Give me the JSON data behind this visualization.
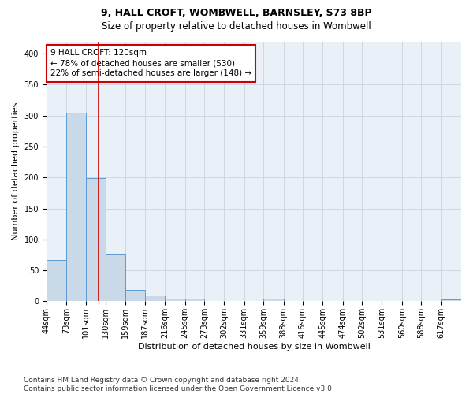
{
  "title1": "9, HALL CROFT, WOMBWELL, BARNSLEY, S73 8BP",
  "title2": "Size of property relative to detached houses in Wombwell",
  "xlabel": "Distribution of detached houses by size in Wombwell",
  "ylabel": "Number of detached properties",
  "bin_labels": [
    "44sqm",
    "73sqm",
    "101sqm",
    "130sqm",
    "159sqm",
    "187sqm",
    "216sqm",
    "245sqm",
    "273sqm",
    "302sqm",
    "331sqm",
    "359sqm",
    "388sqm",
    "416sqm",
    "445sqm",
    "474sqm",
    "502sqm",
    "531sqm",
    "560sqm",
    "588sqm",
    "617sqm"
  ],
  "bin_edges": [
    44,
    73,
    101,
    130,
    159,
    187,
    216,
    245,
    273,
    302,
    331,
    359,
    388,
    416,
    445,
    474,
    502,
    531,
    560,
    588,
    617,
    646
  ],
  "bar_heights": [
    67,
    305,
    199,
    77,
    18,
    9,
    4,
    4,
    0,
    0,
    0,
    5,
    0,
    0,
    0,
    0,
    0,
    0,
    0,
    0,
    3
  ],
  "bar_color": "#c9d9e8",
  "bar_edge_color": "#5b9bd5",
  "property_size": 120,
  "red_line_color": "#cc0000",
  "annotation_line1": "9 HALL CROFT: 120sqm",
  "annotation_line2": "← 78% of detached houses are smaller (530)",
  "annotation_line3": "22% of semi-detached houses are larger (148) →",
  "annotation_box_color": "#ffffff",
  "annotation_box_edge": "#cc0000",
  "ylim": [
    0,
    420
  ],
  "yticks": [
    0,
    50,
    100,
    150,
    200,
    250,
    300,
    350,
    400
  ],
  "grid_color": "#c8d4e0",
  "bg_color": "#eaf0f7",
  "footnote": "Contains HM Land Registry data © Crown copyright and database right 2024.\nContains public sector information licensed under the Open Government Licence v3.0.",
  "title1_fontsize": 9,
  "title2_fontsize": 8.5,
  "xlabel_fontsize": 8,
  "ylabel_fontsize": 8,
  "tick_fontsize": 7,
  "annotation_fontsize": 7.5,
  "footnote_fontsize": 6.5
}
